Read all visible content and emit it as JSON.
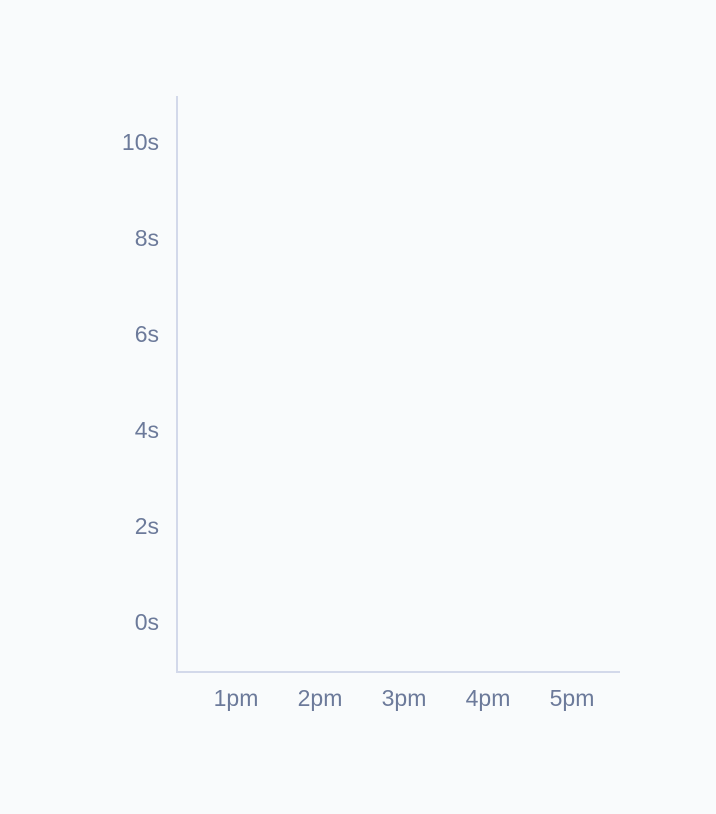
{
  "chart_data": {
    "type": "line",
    "categories": [
      "1pm",
      "2pm",
      "3pm",
      "4pm",
      "5pm"
    ],
    "series": [],
    "ylim": [
      -1,
      11
    ],
    "yticks": [
      {
        "value": 0,
        "label": "0s"
      },
      {
        "value": 2,
        "label": "2s"
      },
      {
        "value": 4,
        "label": "4s"
      },
      {
        "value": 6,
        "label": "6s"
      },
      {
        "value": 8,
        "label": "8s"
      },
      {
        "value": 10,
        "label": "10s"
      }
    ],
    "grid": false
  }
}
